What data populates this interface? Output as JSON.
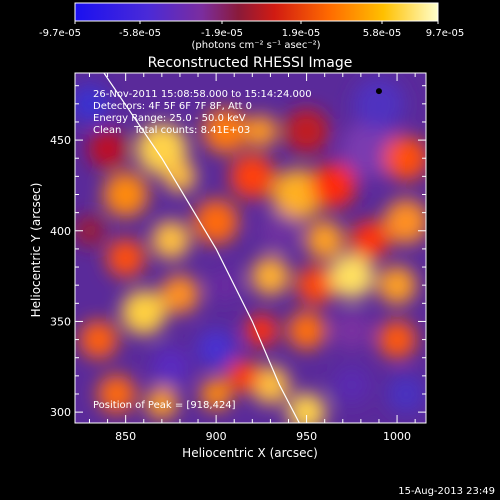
{
  "window": {
    "timestamp": "15-Aug-2013 23:49"
  },
  "colorbar": {
    "ticks": [
      "-9.7e-05",
      "-5.8e-05",
      "-1.9e-05",
      "1.9e-05",
      "5.8e-05",
      "9.7e-05"
    ],
    "units_label": "(photons cm⁻² s⁻¹ asec⁻²)",
    "min": -9.7e-05,
    "max": 9.7e-05
  },
  "plot": {
    "title": "Reconstructed RHESSI Image",
    "xlabel": "Heliocentric X (arcsec)",
    "ylabel": "Heliocentric Y (arcsec)",
    "xlim": [
      822,
      1016
    ],
    "ylim": [
      294,
      487
    ],
    "xticks": [
      850,
      900,
      950,
      1000
    ],
    "yticks": [
      300,
      350,
      400,
      450
    ],
    "info": {
      "time_range": "26-Nov-2011 15:08:58.000 to 15:14:24.000",
      "detectors": "Detectors: 4F 5F 6F 7F 8F, Att 0",
      "energy_range": "Energy Range: 25.0 - 50.0 keV",
      "clean_counts": "Clean    Total counts: 8.41E+03"
    },
    "peak_label": "Position of Peak = [918,424]",
    "peak": {
      "x": 918,
      "y": 424
    },
    "limb_curve": [
      [
        838,
        487
      ],
      [
        870,
        440
      ],
      [
        900,
        390
      ],
      [
        920,
        350
      ],
      [
        935,
        315
      ],
      [
        946,
        294
      ]
    ],
    "colors": {
      "limb": "#ffffff",
      "axes": "#ffffff"
    }
  }
}
